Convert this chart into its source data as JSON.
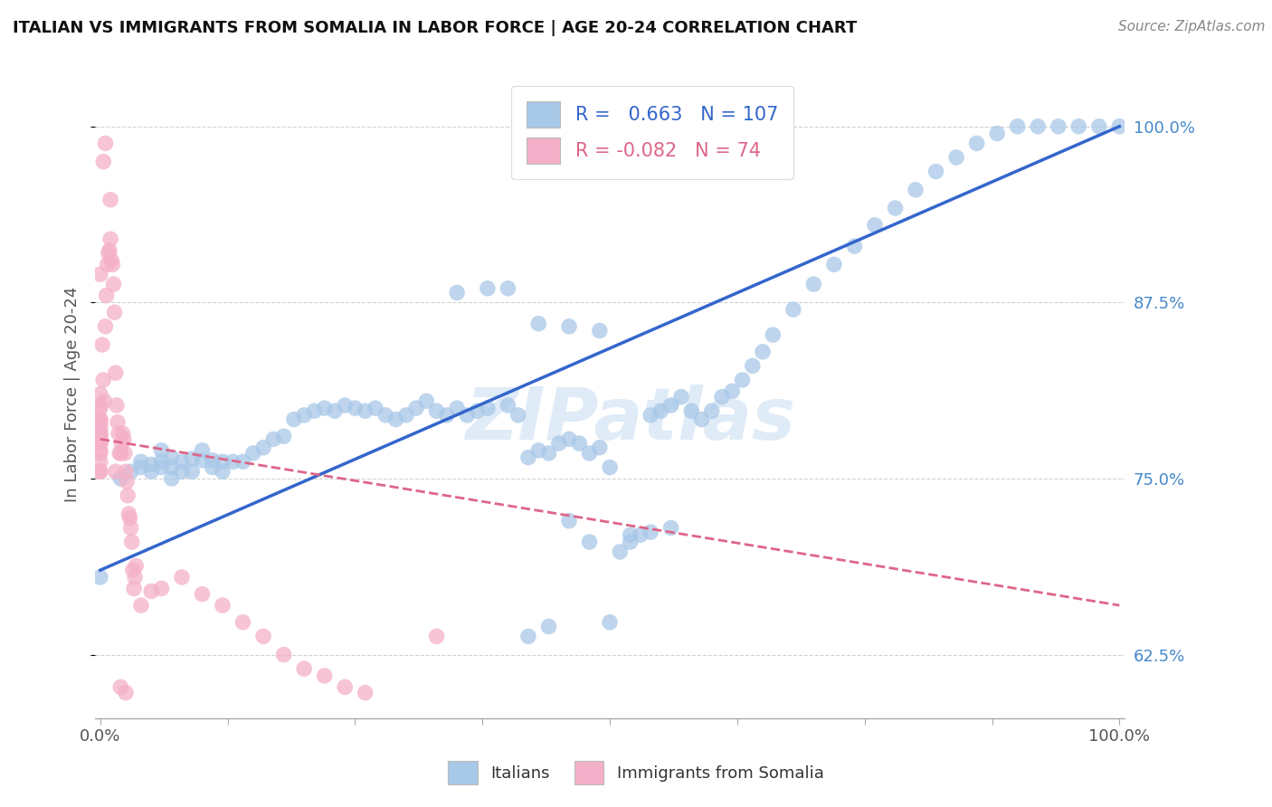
{
  "title": "ITALIAN VS IMMIGRANTS FROM SOMALIA IN LABOR FORCE | AGE 20-24 CORRELATION CHART",
  "source": "Source: ZipAtlas.com",
  "ylabel": "In Labor Force | Age 20-24",
  "blue_R": 0.663,
  "blue_N": 107,
  "pink_R": -0.082,
  "pink_N": 74,
  "blue_color": "#a8c8e8",
  "pink_color": "#f4b0c8",
  "blue_line_color": "#3366cc",
  "pink_line_color": "#dd6688",
  "watermark": "ZIPatlas",
  "background_color": "#ffffff",
  "ytick_color": "#4488cc",
  "ylabel_color": "#555555",
  "title_color": "#111111",
  "source_color": "#888888",
  "grid_color": "#cccccc",
  "blue_scatter_x": [
    0.02,
    0.03,
    0.04,
    0.04,
    0.05,
    0.05,
    0.06,
    0.06,
    0.06,
    0.07,
    0.07,
    0.07,
    0.08,
    0.08,
    0.09,
    0.09,
    0.1,
    0.1,
    0.11,
    0.11,
    0.12,
    0.12,
    0.13,
    0.14,
    0.15,
    0.16,
    0.17,
    0.18,
    0.19,
    0.2,
    0.21,
    0.22,
    0.23,
    0.24,
    0.25,
    0.26,
    0.27,
    0.28,
    0.29,
    0.3,
    0.31,
    0.32,
    0.33,
    0.34,
    0.35,
    0.36,
    0.37,
    0.38,
    0.4,
    0.41,
    0.42,
    0.43,
    0.44,
    0.45,
    0.46,
    0.47,
    0.48,
    0.49,
    0.5,
    0.51,
    0.52,
    0.53,
    0.54,
    0.55,
    0.56,
    0.57,
    0.58,
    0.59,
    0.6,
    0.61,
    0.62,
    0.63,
    0.64,
    0.65,
    0.66,
    0.68,
    0.7,
    0.72,
    0.74,
    0.76,
    0.78,
    0.8,
    0.82,
    0.84,
    0.86,
    0.88,
    0.9,
    0.92,
    0.94,
    0.96,
    0.98,
    1.0,
    0.0,
    0.35,
    0.38,
    0.4,
    0.43,
    0.46,
    0.49,
    0.42,
    0.44,
    0.46,
    0.48,
    0.5,
    0.52,
    0.54,
    0.56
  ],
  "blue_scatter_y": [
    0.75,
    0.755,
    0.758,
    0.762,
    0.76,
    0.755,
    0.762,
    0.77,
    0.758,
    0.765,
    0.758,
    0.75,
    0.762,
    0.755,
    0.764,
    0.755,
    0.763,
    0.77,
    0.758,
    0.763,
    0.762,
    0.755,
    0.762,
    0.762,
    0.768,
    0.772,
    0.778,
    0.78,
    0.792,
    0.795,
    0.798,
    0.8,
    0.798,
    0.802,
    0.8,
    0.798,
    0.8,
    0.795,
    0.792,
    0.795,
    0.8,
    0.805,
    0.798,
    0.795,
    0.8,
    0.795,
    0.798,
    0.8,
    0.802,
    0.795,
    0.765,
    0.77,
    0.768,
    0.775,
    0.778,
    0.775,
    0.768,
    0.772,
    0.758,
    0.698,
    0.705,
    0.71,
    0.795,
    0.798,
    0.802,
    0.808,
    0.798,
    0.792,
    0.798,
    0.808,
    0.812,
    0.82,
    0.83,
    0.84,
    0.852,
    0.87,
    0.888,
    0.902,
    0.915,
    0.93,
    0.942,
    0.955,
    0.968,
    0.978,
    0.988,
    0.995,
    1.0,
    1.0,
    1.0,
    1.0,
    1.0,
    1.0,
    0.68,
    0.882,
    0.885,
    0.885,
    0.86,
    0.858,
    0.855,
    0.638,
    0.645,
    0.72,
    0.705,
    0.648,
    0.71,
    0.712,
    0.715
  ],
  "pink_scatter_x": [
    0.0,
    0.0,
    0.0,
    0.0,
    0.0,
    0.0,
    0.0,
    0.0,
    0.0,
    0.0,
    0.0,
    0.0,
    0.0,
    0.0,
    0.0,
    0.0,
    0.0,
    0.0,
    0.0,
    0.0,
    0.002,
    0.003,
    0.004,
    0.005,
    0.006,
    0.007,
    0.008,
    0.009,
    0.01,
    0.011,
    0.012,
    0.013,
    0.014,
    0.015,
    0.016,
    0.017,
    0.018,
    0.019,
    0.02,
    0.021,
    0.022,
    0.023,
    0.024,
    0.025,
    0.026,
    0.027,
    0.028,
    0.029,
    0.03,
    0.031,
    0.032,
    0.033,
    0.034,
    0.035,
    0.04,
    0.05,
    0.06,
    0.08,
    0.1,
    0.12,
    0.14,
    0.16,
    0.18,
    0.2,
    0.22,
    0.24,
    0.26,
    0.33,
    0.02,
    0.025,
    0.015,
    0.01,
    0.005,
    0.003
  ],
  "pink_scatter_y": [
    0.782,
    0.792,
    0.77,
    0.78,
    0.792,
    0.802,
    0.762,
    0.775,
    0.782,
    0.755,
    0.8,
    0.788,
    0.775,
    0.785,
    0.778,
    0.768,
    0.755,
    0.81,
    0.79,
    0.895,
    0.845,
    0.82,
    0.805,
    0.858,
    0.88,
    0.902,
    0.91,
    0.912,
    0.92,
    0.905,
    0.902,
    0.888,
    0.868,
    0.825,
    0.802,
    0.79,
    0.782,
    0.768,
    0.768,
    0.775,
    0.782,
    0.778,
    0.768,
    0.755,
    0.748,
    0.738,
    0.725,
    0.722,
    0.715,
    0.705,
    0.685,
    0.672,
    0.68,
    0.688,
    0.66,
    0.67,
    0.672,
    0.68,
    0.668,
    0.66,
    0.648,
    0.638,
    0.625,
    0.615,
    0.61,
    0.602,
    0.598,
    0.638,
    0.602,
    0.598,
    0.755,
    0.948,
    0.988,
    0.975
  ]
}
